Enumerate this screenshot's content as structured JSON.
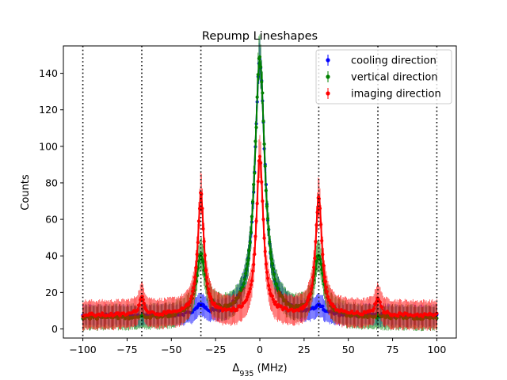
{
  "chart_data": {
    "type": "scatter",
    "title": "Repump Lineshapes",
    "xlabel": "Δ935 (MHz)",
    "xlabel_main": "Δ",
    "xlabel_sub": "935",
    "xlabel_unit": " (MHz)",
    "ylabel": "Counts",
    "xlim": [
      -111,
      111
    ],
    "ylim": [
      -5,
      155
    ],
    "xticks": [
      -100,
      -75,
      -50,
      -25,
      0,
      25,
      50,
      75,
      100
    ],
    "xtick_labels": [
      "−100",
      "−75",
      "−50",
      "−25",
      "0",
      "25",
      "50",
      "75",
      "100"
    ],
    "yticks": [
      0,
      20,
      40,
      60,
      80,
      100,
      120,
      140
    ],
    "ytick_labels": [
      "0",
      "20",
      "40",
      "60",
      "80",
      "100",
      "120",
      "140"
    ],
    "grid": false,
    "vertical_dotted_lines_x": [
      -100,
      -66.7,
      -33.3,
      33.3,
      66.7,
      100
    ],
    "legend_position": "top-right",
    "series": [
      {
        "name": "cooling direction",
        "color": "#0000ff",
        "baseline": 7,
        "peaks": [
          {
            "center": 0,
            "amplitude": 140,
            "width": 3.5
          },
          {
            "center": -33.3,
            "amplitude": 5,
            "width": 3
          },
          {
            "center": 33.3,
            "amplitude": 5,
            "width": 3
          }
        ],
        "error_bar": 4
      },
      {
        "name": "vertical direction",
        "color": "#008000",
        "baseline": 6,
        "peaks": [
          {
            "center": 0,
            "amplitude": 141,
            "width": 3.5
          },
          {
            "center": -33.3,
            "amplitude": 33,
            "width": 3.2
          },
          {
            "center": 33.3,
            "amplitude": 33,
            "width": 3.2
          }
        ],
        "error_bar": 5
      },
      {
        "name": "imaging direction",
        "color": "#ff0000",
        "baseline": 7.5,
        "peaks": [
          {
            "center": 0,
            "amplitude": 86,
            "width": 2.4
          },
          {
            "center": -33.3,
            "amplitude": 65,
            "width": 2.2
          },
          {
            "center": 33.3,
            "amplitude": 65,
            "width": 2.2
          },
          {
            "center": -66.7,
            "amplitude": 9,
            "width": 1.8
          },
          {
            "center": 66.7,
            "amplitude": 9,
            "width": 1.8
          }
        ],
        "error_bar": 6
      }
    ]
  }
}
